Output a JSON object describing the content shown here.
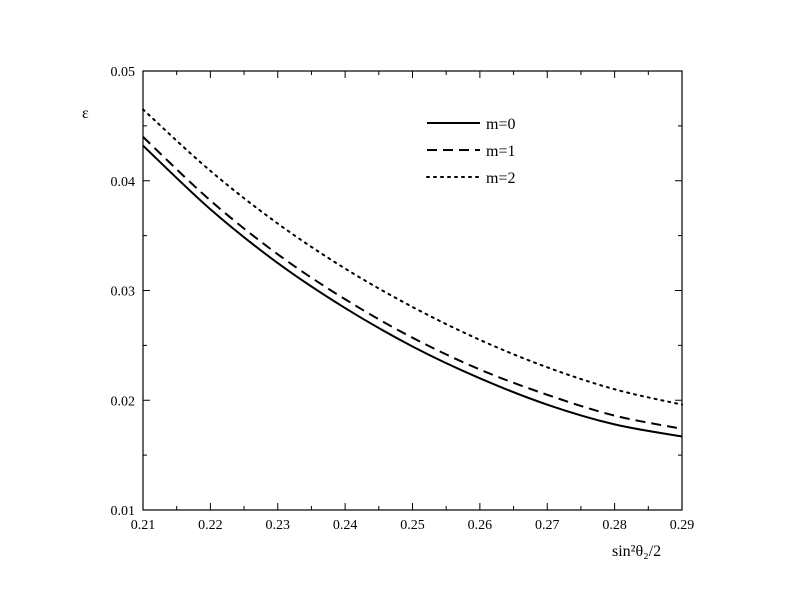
{
  "chart_data": {
    "type": "line",
    "title": "",
    "xlabel": "sin²θ₂/2",
    "ylabel": "ε",
    "xlim": [
      0.21,
      0.29
    ],
    "ylim": [
      0.01,
      0.05
    ],
    "x_ticks": [
      "0.21",
      "0.22",
      "0.23",
      "0.24",
      "0.25",
      "0.26",
      "0.27",
      "0.28",
      "0.29"
    ],
    "y_ticks": [
      "0.01",
      "0.02",
      "0.03",
      "0.04",
      "0.05"
    ],
    "legend_position": "top-right",
    "grid": false,
    "series": [
      {
        "name": "m=0",
        "style": "solid",
        "x": [
          0.21,
          0.22,
          0.23,
          0.24,
          0.25,
          0.26,
          0.27,
          0.28,
          0.29
        ],
        "values": [
          0.0432,
          0.0374,
          0.0325,
          0.0284,
          0.0249,
          0.022,
          0.0196,
          0.0178,
          0.0167
        ]
      },
      {
        "name": "m=1",
        "style": "dashed",
        "x": [
          0.21,
          0.22,
          0.23,
          0.24,
          0.25,
          0.26,
          0.27,
          0.28,
          0.29
        ],
        "values": [
          0.044,
          0.0382,
          0.0333,
          0.0292,
          0.0257,
          0.0228,
          0.0205,
          0.0186,
          0.0174
        ]
      },
      {
        "name": "m=2",
        "style": "dotted",
        "x": [
          0.21,
          0.22,
          0.23,
          0.24,
          0.25,
          0.26,
          0.27,
          0.28,
          0.29
        ],
        "values": [
          0.0465,
          0.0409,
          0.0361,
          0.032,
          0.0285,
          0.0255,
          0.023,
          0.021,
          0.0196
        ]
      }
    ]
  }
}
